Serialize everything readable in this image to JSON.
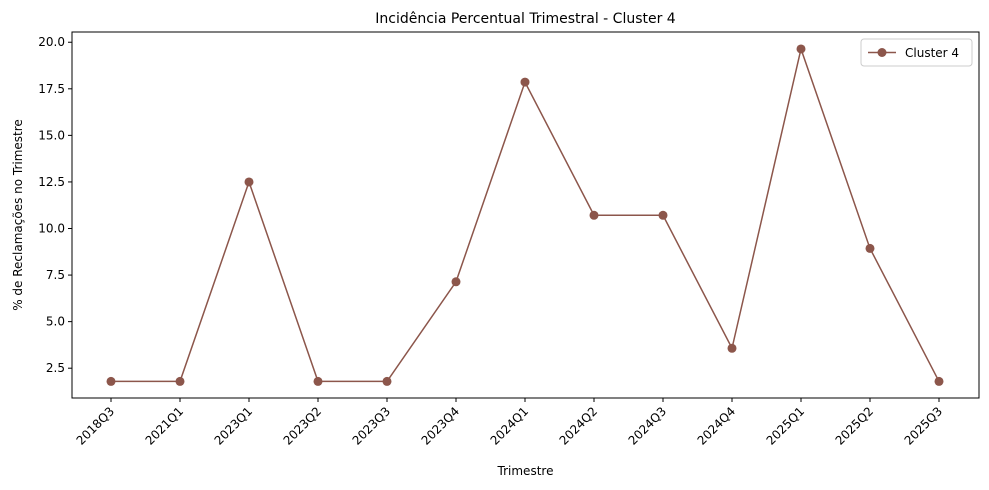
{
  "chart_data": {
    "type": "line",
    "title": "Incidência Percentual Trimestral - Cluster 4",
    "xlabel": "Trimestre",
    "ylabel": "% de Reclamações no Trimestre",
    "categories": [
      "2018Q3",
      "2021Q1",
      "2023Q1",
      "2023Q2",
      "2023Q3",
      "2023Q4",
      "2024Q1",
      "2024Q2",
      "2024Q3",
      "2024Q4",
      "2025Q1",
      "2025Q2",
      "2025Q3"
    ],
    "series": [
      {
        "name": "Cluster 4",
        "color": "#8c564b",
        "values": [
          1.79,
          1.79,
          12.5,
          1.79,
          1.79,
          7.14,
          17.86,
          10.71,
          10.71,
          3.57,
          19.64,
          8.93,
          1.79
        ]
      }
    ],
    "ylim": [
      0.9,
      20.55
    ],
    "yticks": [
      "2.5",
      "5.0",
      "7.5",
      "10.0",
      "12.5",
      "15.0",
      "17.5",
      "20.0"
    ],
    "grid": false,
    "legend_position": "top-right"
  }
}
